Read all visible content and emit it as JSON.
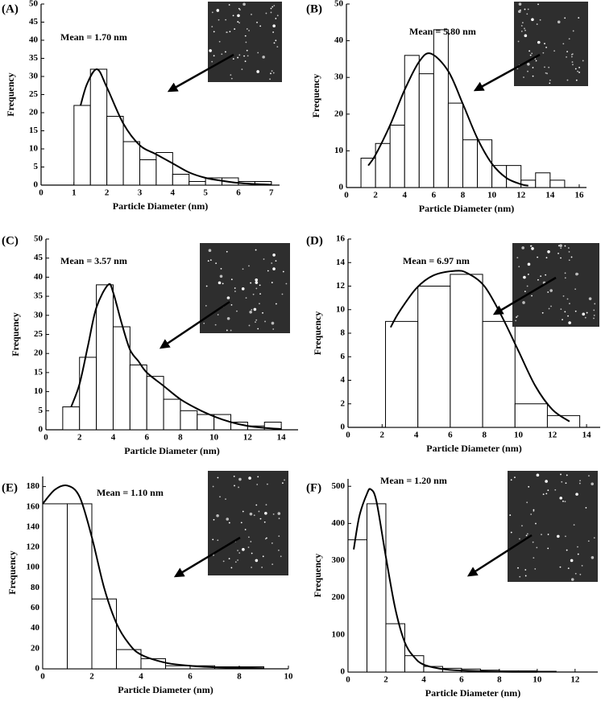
{
  "chart_data": [
    {
      "type": "histogram",
      "label": "(A)",
      "annotation": "Mean = 1.70 nm",
      "xlabel": "Particle Diameter (nm)",
      "ylabel": "Frequency",
      "bins": [
        1.0,
        1.5,
        2.0,
        2.5,
        3.0,
        3.5,
        4.0,
        4.5,
        5.0,
        5.5,
        6.0,
        6.5,
        7.0
      ],
      "values": [
        22,
        32,
        19,
        12,
        7,
        9,
        3,
        1,
        2,
        2,
        1,
        1
      ],
      "fit": {
        "x": [
          1.2,
          1.4,
          1.7,
          2.0,
          2.5,
          3.0,
          3.5,
          4.0,
          4.5,
          5.0,
          5.5,
          6.0,
          6.5,
          7.0
        ],
        "values": [
          22,
          28,
          32,
          27,
          17,
          11,
          8.5,
          6,
          3.5,
          2,
          1.2,
          0.6,
          0.3,
          0.1
        ]
      },
      "bar_fill": "#ffffff",
      "color": "#000000",
      "xlim": [
        0,
        7.25
      ],
      "xticks": [
        0,
        1,
        2,
        3,
        4,
        5,
        6,
        7
      ],
      "ylim": [
        0,
        50
      ],
      "yticks": [
        0,
        5,
        10,
        15,
        20,
        25,
        30,
        35,
        40,
        45,
        50
      ]
    },
    {
      "type": "histogram",
      "label": "(B)",
      "annotation": "Mean = 5.80 nm",
      "xlabel": "Particle Diameter (nm)",
      "ylabel": "Frequency",
      "bins": [
        1,
        2,
        3,
        4,
        5,
        6,
        7,
        8,
        9,
        10,
        11,
        12,
        13,
        14,
        15
      ],
      "values": [
        8,
        12,
        17,
        36,
        31,
        43,
        23,
        13,
        13,
        6,
        6,
        2,
        4,
        2
      ],
      "fit": {
        "x": [
          1.5,
          2,
          3,
          4,
          5,
          5.8,
          7,
          8,
          9,
          10,
          11,
          12,
          12.5
        ],
        "values": [
          6,
          8.9,
          17,
          26.6,
          34.3,
          36.5,
          31.7,
          22.8,
          13.4,
          6.5,
          2.6,
          0.9,
          0.5
        ]
      },
      "bar_fill": "#ffffff",
      "color": "#000000",
      "xlim": [
        0,
        16.5
      ],
      "xticks": [
        0,
        2,
        4,
        6,
        8,
        10,
        12,
        14,
        16
      ],
      "ylim": [
        0,
        50
      ],
      "yticks": [
        0,
        10,
        20,
        30,
        40,
        50
      ]
    },
    {
      "type": "histogram",
      "label": "(C)",
      "annotation": "Mean = 3.57 nm",
      "xlabel": "Particle Diameter (nm)",
      "ylabel": "Frequency",
      "bins": [
        1,
        2,
        3,
        4,
        5,
        6,
        7,
        8,
        9,
        10,
        11,
        12,
        13,
        14
      ],
      "values": [
        6,
        19,
        38,
        27,
        17,
        14,
        8,
        5,
        4,
        4,
        2,
        1,
        2
      ],
      "fit": {
        "x": [
          1.5,
          2,
          2.5,
          3,
          3.7,
          4,
          4.5,
          5,
          5.5,
          6,
          7,
          8,
          9,
          10,
          11,
          12,
          13,
          14
        ],
        "values": [
          6,
          12,
          22,
          32,
          38,
          36,
          28,
          21,
          18,
          15,
          11.5,
          8,
          5.5,
          3.5,
          2,
          1,
          0.5,
          0.2
        ]
      },
      "bar_fill": "#ffffff",
      "color": "#000000",
      "xlim": [
        0,
        15
      ],
      "xticks": [
        0,
        2,
        4,
        6,
        8,
        10,
        12,
        14
      ],
      "ylim": [
        0,
        50
      ],
      "yticks": [
        0,
        5,
        10,
        15,
        20,
        25,
        30,
        35,
        40,
        45,
        50
      ]
    },
    {
      "type": "histogram",
      "label": "(D)",
      "annotation": "Mean = 6.97 nm",
      "xlabel": "Particle Diameter (nm)",
      "ylabel": "Frequency",
      "bins": [
        2.2,
        4.1,
        6.0,
        7.9,
        9.8,
        11.7,
        13.6
      ],
      "values": [
        9,
        12,
        13,
        9,
        2,
        1
      ],
      "fit": {
        "x": [
          2.5,
          3,
          4,
          5,
          6.3,
          7,
          8,
          9,
          10,
          11,
          12,
          13
        ],
        "values": [
          8.5,
          9.8,
          11.8,
          12.9,
          13.3,
          13.1,
          12,
          9.5,
          6.5,
          3.5,
          1.5,
          0.5
        ]
      },
      "bar_fill": "#ffffff",
      "color": "#000000",
      "xlim": [
        0,
        14.8
      ],
      "xticks": [
        0,
        2,
        4,
        6,
        8,
        10,
        12,
        14
      ],
      "ylim": [
        0,
        16
      ],
      "yticks": [
        0,
        2,
        4,
        6,
        8,
        10,
        12,
        14,
        16
      ]
    },
    {
      "type": "histogram",
      "label": "(E)",
      "annotation": "Mean = 1.10 nm",
      "xlabel": "Particle Diameter (nm)",
      "ylabel": "Frequency",
      "bins": [
        0,
        1,
        2,
        3,
        4,
        5,
        6,
        7,
        8,
        9
      ],
      "values": [
        163,
        163,
        69,
        19,
        10,
        3,
        3,
        2,
        2
      ],
      "fit": {
        "x": [
          0,
          0.5,
          1,
          1.5,
          2,
          2.5,
          3,
          3.5,
          4,
          5,
          6,
          7,
          8,
          9
        ],
        "values": [
          163,
          177,
          181,
          170,
          130,
          80,
          45,
          25,
          14,
          6,
          3,
          1.5,
          1,
          0.5
        ]
      },
      "bar_fill": "#ffffff",
      "color": "#000000",
      "xlim": [
        0,
        10
      ],
      "xticks": [
        0,
        2,
        4,
        6,
        8,
        10
      ],
      "ylim": [
        0,
        190
      ],
      "yticks": [
        0,
        20,
        40,
        60,
        80,
        100,
        120,
        140,
        160,
        180
      ]
    },
    {
      "type": "histogram",
      "label": "(F)",
      "annotation": "Mean = 1.20 nm",
      "xlabel": "Particle Diameter (nm)",
      "ylabel": "Frequency",
      "bins": [
        0,
        1,
        2,
        3,
        4,
        5,
        6,
        7,
        8,
        9,
        10,
        11
      ],
      "values": [
        356,
        453,
        130,
        44,
        15,
        10,
        8,
        5,
        3,
        3,
        2
      ],
      "fit": {
        "x": [
          0.3,
          0.6,
          1,
          1.2,
          1.5,
          2,
          2.5,
          3,
          3.5,
          4,
          5,
          6,
          8,
          10
        ],
        "values": [
          330,
          420,
          480,
          492,
          460,
          310,
          170,
          80,
          40,
          20,
          8,
          4,
          1,
          0.5
        ]
      },
      "bar_fill": "#ffffff",
      "color": "#000000",
      "xlim": [
        0,
        13.2
      ],
      "xticks": [
        0,
        2,
        4,
        6,
        8,
        10,
        12
      ],
      "ylim": [
        0,
        520
      ],
      "yticks": [
        0,
        100,
        200,
        300,
        400,
        500
      ]
    }
  ]
}
